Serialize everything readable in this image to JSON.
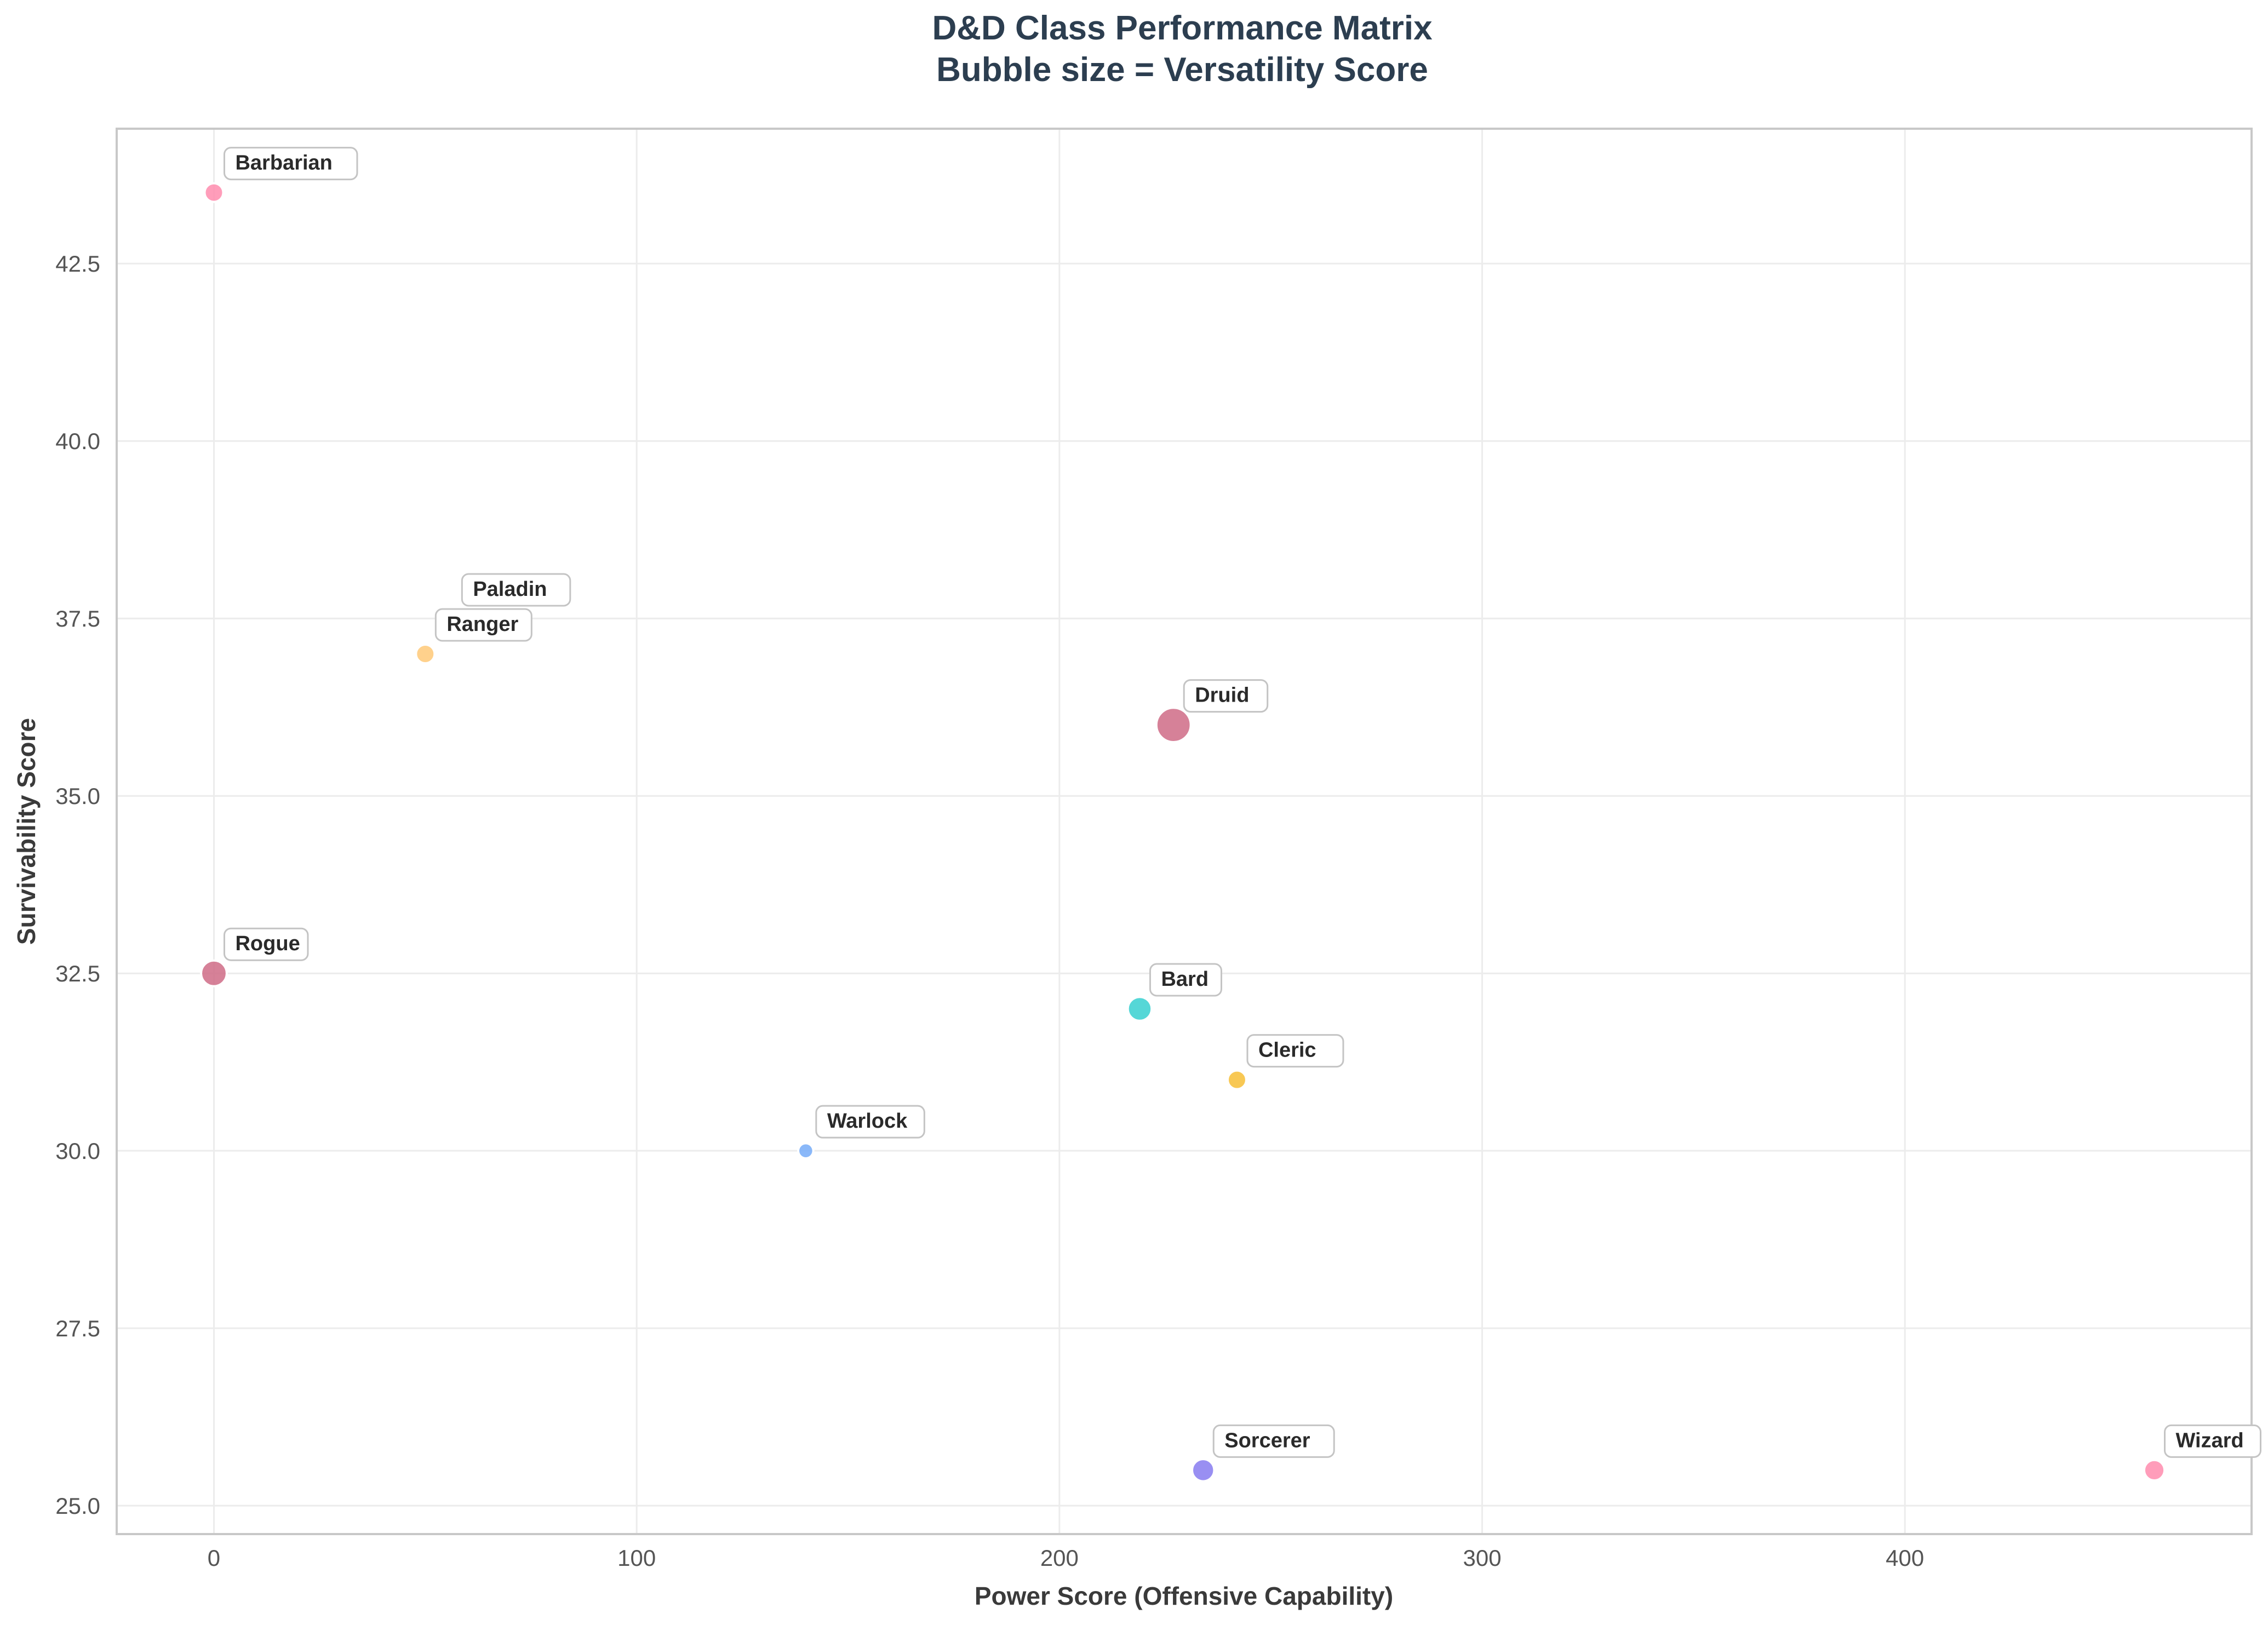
{
  "chart_data": {
    "type": "scatter",
    "title": "D&D Class Performance Matrix",
    "subtitle": "Bubble size = Versatility Score",
    "xlabel": "Power Score (Offensive Capability)",
    "ylabel": "Survivability Score",
    "xlim": [
      -23,
      482
    ],
    "ylim": [
      24.6,
      44.4
    ],
    "xticks": [
      0,
      100,
      200,
      300,
      400
    ],
    "yticks": [
      25.0,
      27.5,
      30.0,
      32.5,
      35.0,
      37.5,
      40.0,
      42.5
    ],
    "grid": true,
    "points": [
      {
        "name": "Barbarian",
        "x": 0,
        "y": 43.5,
        "versatility": 5,
        "color": "#ff8fb1"
      },
      {
        "name": "Ranger",
        "x": 50,
        "y": 37.0,
        "versatility": 5,
        "color": "#ffd08a"
      },
      {
        "name": "Paladin",
        "x": 50,
        "y": 37.0,
        "versatility": 5,
        "color": "#ffd08a"
      },
      {
        "name": "Druid",
        "x": 227,
        "y": 36.0,
        "versatility": 14,
        "color": "#d0708a"
      },
      {
        "name": "Rogue",
        "x": 0,
        "y": 32.5,
        "versatility": 9,
        "color": "#d0708a"
      },
      {
        "name": "Bard",
        "x": 219,
        "y": 32.0,
        "versatility": 8,
        "color": "#3ed2d2"
      },
      {
        "name": "Cleric",
        "x": 242,
        "y": 31.0,
        "versatility": 5,
        "color": "#f7c03c"
      },
      {
        "name": "Warlock",
        "x": 140,
        "y": 30.0,
        "versatility": 3,
        "color": "#7aaef8"
      },
      {
        "name": "Sorcerer",
        "x": 234,
        "y": 25.5,
        "versatility": 7,
        "color": "#8b80f0"
      },
      {
        "name": "Wizard",
        "x": 459,
        "y": 25.5,
        "versatility": 6,
        "color": "#ff8fb1"
      }
    ]
  }
}
